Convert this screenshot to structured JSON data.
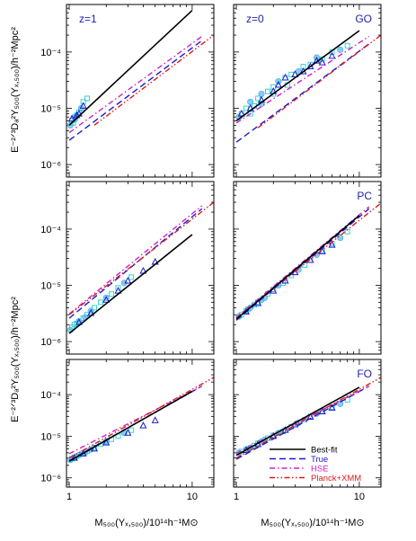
{
  "figure": {
    "ylabel_top": "E⁻²ᐟ³Dₐ²Y₅₀₀(Yₓ,₅₀₀)/h⁻²Mpc²",
    "ylabel_bottom": "E⁻²ᐟ³Dₐ²Y₅₀₀(Yₓ,₅₀₀)/h⁻²Mpc²",
    "xlabel_left": "M₅₀₀(Yₓ,₅₀₀)/10¹⁴h⁻¹M⊙",
    "xlabel_right": "M₅₀₀(Yₓ,₅₀₀)/10¹⁴h⁻¹M⊙"
  },
  "legend": [
    {
      "label": "Best-fit",
      "color": "#000000",
      "dash": "solid"
    },
    {
      "label": "True",
      "color": "#1a1acc",
      "dash": "dash"
    },
    {
      "label": "HSE",
      "color": "#cc22cc",
      "dash": "dashdot"
    },
    {
      "label": "Planck+XMM",
      "color": "#dd1a1a",
      "dash": "dashdotdot"
    }
  ],
  "chart_data": [
    {
      "type": "scatter",
      "panel": "top-left",
      "label": "z=1",
      "label_color": "#2222aa",
      "xscale": "log",
      "yscale": "log",
      "xlim": [
        0.95,
        15
      ],
      "ylim": [
        6e-07,
        0.0007
      ],
      "x_ticks": [
        "1",
        "10"
      ],
      "y_ticks": [
        "10⁻⁶",
        "10⁻⁵",
        "10⁻⁴"
      ],
      "fit": {
        "x": [
          1.0,
          10.0
        ],
        "y": [
          5e-06,
          0.00055
        ]
      },
      "true": {
        "x": [
          1.0,
          12.0
        ],
        "y": [
          2.7e-06,
          0.00016
        ]
      },
      "hse": {
        "x": [
          1.0,
          12.0
        ],
        "y": [
          3.7e-06,
          0.00019
        ]
      },
      "planck": {
        "x": [
          1.6,
          15.0
        ],
        "y": [
          5e-06,
          0.0002
        ]
      },
      "points": [
        [
          1.02,
          5e-06
        ],
        [
          1.05,
          6e-06
        ],
        [
          1.08,
          5.5e-06
        ],
        [
          1.1,
          7e-06
        ],
        [
          1.15,
          7.5e-06
        ],
        [
          1.2,
          8.5e-06
        ],
        [
          1.25,
          1e-05
        ],
        [
          1.3,
          1.3e-05
        ],
        [
          1.4,
          1.5e-05
        ],
        [
          1.12,
          6.5e-06
        ]
      ],
      "triangles": [
        [
          1.05,
          6.5e-06
        ],
        [
          1.15,
          7.5e-06
        ],
        [
          1.2,
          8e-06
        ],
        [
          1.3,
          1.1e-05
        ]
      ]
    },
    {
      "type": "scatter",
      "panel": "top-right",
      "label": "z=0",
      "label2": "GO",
      "label_color": "#2222aa",
      "xscale": "log",
      "yscale": "log",
      "xlim": [
        0.95,
        15
      ],
      "ylim": [
        6e-07,
        0.0007
      ],
      "x_ticks": [
        "1",
        "10"
      ],
      "y_ticks": [
        "10⁻⁶",
        "10⁻⁵",
        "10⁻⁴"
      ],
      "fit": {
        "x": [
          1.0,
          10.0
        ],
        "y": [
          6e-06,
          0.00024
        ]
      },
      "true": {
        "x": [
          1.0,
          12.0
        ],
        "y": [
          2.5e-06,
          0.00014
        ]
      },
      "hse": {
        "x": [
          1.0,
          12.0
        ],
        "y": [
          5.5e-06,
          0.00019
        ]
      },
      "planck": {
        "x": [
          1.5,
          15.0
        ],
        "y": [
          4.5e-06,
          0.0002
        ]
      },
      "points": [
        [
          1.05,
          7e-06
        ],
        [
          1.1,
          8e-06
        ],
        [
          1.2,
          1e-05
        ],
        [
          1.3,
          1.3e-05
        ],
        [
          1.4,
          1.1e-05
        ],
        [
          1.5,
          1.5e-05
        ],
        [
          1.6,
          1.8e-05
        ],
        [
          1.8,
          2e-05
        ],
        [
          2.0,
          2.4e-05
        ],
        [
          2.2,
          3e-05
        ],
        [
          2.5,
          3.5e-05
        ],
        [
          2.8,
          4e-05
        ],
        [
          3.2,
          4.5e-05
        ],
        [
          3.5,
          5.5e-05
        ],
        [
          4.0,
          6e-05
        ],
        [
          4.5,
          8e-05
        ],
        [
          5.0,
          7.5e-05
        ],
        [
          6.0,
          0.0001
        ],
        [
          7.0,
          0.00011
        ],
        [
          8.0,
          0.00013
        ],
        [
          1.3,
          8e-06
        ],
        [
          1.6,
          1.2e-05
        ],
        [
          2.0,
          1.8e-05
        ],
        [
          2.6,
          2.6e-05
        ]
      ],
      "triangles": [
        [
          1.1,
          8e-06
        ],
        [
          1.3,
          1e-05
        ],
        [
          1.6,
          1.4e-05
        ],
        [
          2.0,
          2e-05
        ],
        [
          2.5,
          3.5e-05
        ],
        [
          3.0,
          4e-05
        ],
        [
          3.5,
          4.5e-05
        ],
        [
          4.0,
          5.5e-05
        ],
        [
          4.5,
          7e-05
        ],
        [
          5.0,
          6.5e-05
        ],
        [
          6.0,
          8.5e-05
        ],
        [
          2.2,
          2.6e-05
        ]
      ]
    },
    {
      "type": "scatter",
      "panel": "middle-left",
      "label": "",
      "label_color": "#2222aa",
      "xscale": "log",
      "yscale": "log",
      "xlim": [
        0.95,
        15
      ],
      "ylim": [
        6e-07,
        0.0007
      ],
      "x_ticks": [
        "1",
        "10"
      ],
      "y_ticks": [
        "10⁻⁶",
        "10⁻⁵",
        "10⁻⁴"
      ],
      "fit": {
        "x": [
          1.0,
          10.0
        ],
        "y": [
          1.4e-06,
          8e-05
        ]
      },
      "true": {
        "x": [
          1.0,
          12.0
        ],
        "y": [
          2.6e-06,
          0.00023
        ]
      },
      "hse": {
        "x": [
          1.0,
          12.0
        ],
        "y": [
          3.1e-06,
          0.00026
        ]
      },
      "planck": {
        "x": [
          1.0,
          15.0
        ],
        "y": [
          3e-06,
          0.0003
        ]
      },
      "points": [
        [
          1.02,
          1.6e-06
        ],
        [
          1.05,
          1.8e-06
        ],
        [
          1.1,
          2e-06
        ],
        [
          1.2,
          2.3e-06
        ],
        [
          1.3,
          2.6e-06
        ],
        [
          1.4,
          3e-06
        ],
        [
          1.5,
          3.5e-06
        ],
        [
          1.6,
          4e-06
        ],
        [
          1.8,
          5e-06
        ],
        [
          2.0,
          6e-06
        ],
        [
          2.2,
          7e-06
        ],
        [
          2.5,
          9e-06
        ],
        [
          2.8,
          1.1e-05
        ],
        [
          3.2,
          1.4e-05
        ],
        [
          1.15,
          2.1e-06
        ],
        [
          1.35,
          2.7e-06
        ]
      ],
      "triangles": [
        [
          1.2,
          2.2e-06
        ],
        [
          1.5,
          3.2e-06
        ],
        [
          2.0,
          5.5e-06
        ],
        [
          2.5,
          8e-06
        ],
        [
          3.0,
          1.2e-05
        ],
        [
          4.0,
          1.8e-05
        ],
        [
          5.0,
          2.6e-05
        ]
      ]
    },
    {
      "type": "scatter",
      "panel": "middle-right",
      "label": "",
      "label2": "PC",
      "label_color": "#2222aa",
      "xscale": "log",
      "yscale": "log",
      "xlim": [
        0.95,
        15
      ],
      "ylim": [
        6e-07,
        0.0007
      ],
      "x_ticks": [
        "1",
        "10"
      ],
      "y_ticks": [
        "10⁻⁶",
        "10⁻⁵",
        "10⁻⁴"
      ],
      "fit": {
        "x": [
          1.0,
          10.0
        ],
        "y": [
          2.5e-06,
          0.000175
        ]
      },
      "true": {
        "x": [
          1.0,
          12.0
        ],
        "y": [
          2.4e-06,
          0.00023
        ]
      },
      "hse": {
        "x": [
          1.0,
          12.0
        ],
        "y": [
          2.7e-06,
          0.00025
        ]
      },
      "planck": {
        "x": [
          1.0,
          15.0
        ],
        "y": [
          2.6e-06,
          0.00029
        ]
      },
      "points": [
        [
          1.05,
          2.8e-06
        ],
        [
          1.1,
          3e-06
        ],
        [
          1.2,
          3.5e-06
        ],
        [
          1.3,
          4e-06
        ],
        [
          1.4,
          4.5e-06
        ],
        [
          1.5,
          5e-06
        ],
        [
          1.6,
          5.5e-06
        ],
        [
          1.8,
          7e-06
        ],
        [
          2.0,
          8.5e-06
        ],
        [
          2.2,
          1e-05
        ],
        [
          2.5,
          1.2e-05
        ],
        [
          2.8,
          1.5e-05
        ],
        [
          3.2,
          1.9e-05
        ],
        [
          3.6,
          2.3e-05
        ],
        [
          4.0,
          2.8e-05
        ],
        [
          4.5,
          3.5e-05
        ],
        [
          5.0,
          4.2e-05
        ],
        [
          6.0,
          5.5e-05
        ],
        [
          7.0,
          7e-05
        ],
        [
          8.0,
          9e-05
        ],
        [
          1.25,
          3.8e-06
        ],
        [
          1.7,
          6e-06
        ],
        [
          2.4,
          1.1e-05
        ]
      ],
      "triangles": [
        [
          1.2,
          3.4e-06
        ],
        [
          1.5,
          4.8e-06
        ],
        [
          2.0,
          8e-06
        ],
        [
          2.5,
          1.2e-05
        ],
        [
          3.0,
          1.7e-05
        ],
        [
          4.0,
          2.8e-05
        ],
        [
          5.0,
          4e-05
        ],
        [
          6.0,
          5.2e-05
        ]
      ]
    },
    {
      "type": "scatter",
      "panel": "bottom-left",
      "label": "",
      "label_color": "#2222aa",
      "xscale": "log",
      "yscale": "log",
      "xlim": [
        0.95,
        15
      ],
      "ylim": [
        6e-07,
        0.0007
      ],
      "x_ticks": [
        "1",
        "10"
      ],
      "y_ticks": [
        "10⁻⁶",
        "10⁻⁵",
        "10⁻⁴"
      ],
      "fit": {
        "x": [
          1.0,
          10.0
        ],
        "y": [
          2.5e-06,
          0.00012
        ]
      },
      "true": {
        "x": [
          1.0,
          12.0
        ],
        "y": [
          2.6e-06,
          0.00016
        ]
      },
      "hse": {
        "x": [
          1.0,
          12.0
        ],
        "y": [
          3.8e-06,
          0.00016
        ]
      },
      "planck": {
        "x": [
          1.0,
          15.0
        ],
        "y": [
          3e-06,
          0.00026
        ]
      },
      "points": [
        [
          1.02,
          2.7e-06
        ],
        [
          1.05,
          2.9e-06
        ],
        [
          1.1,
          3.1e-06
        ],
        [
          1.2,
          3.5e-06
        ],
        [
          1.3,
          4e-06
        ],
        [
          1.4,
          4.4e-06
        ],
        [
          1.5,
          4.8e-06
        ],
        [
          1.6,
          5.3e-06
        ],
        [
          1.8,
          6.5e-06
        ],
        [
          2.0,
          7.5e-06
        ],
        [
          2.2,
          8.5e-06
        ],
        [
          2.5,
          1e-05
        ],
        [
          2.8,
          1.2e-05
        ],
        [
          3.2,
          1.4e-05
        ],
        [
          1.15,
          3.3e-06
        ],
        [
          1.35,
          4.1e-06
        ]
      ],
      "triangles": [
        [
          1.1,
          3e-06
        ],
        [
          1.3,
          3.8e-06
        ],
        [
          1.6,
          5e-06
        ],
        [
          2.0,
          7e-06
        ],
        [
          3.0,
          1.2e-05
        ],
        [
          4.0,
          1.8e-05
        ],
        [
          5.0,
          2.4e-05
        ]
      ]
    },
    {
      "type": "scatter",
      "panel": "bottom-right",
      "label": "",
      "label2": "FO",
      "label_color": "#2222aa",
      "xscale": "log",
      "yscale": "log",
      "xlim": [
        0.95,
        15
      ],
      "ylim": [
        6e-07,
        0.0007
      ],
      "x_ticks": [
        "1",
        "10"
      ],
      "y_ticks": [
        "10⁻⁶",
        "10⁻⁵",
        "10⁻⁴"
      ],
      "fit": {
        "x": [
          1.0,
          10.0
        ],
        "y": [
          3.5e-06,
          0.00015
        ]
      },
      "true": {
        "x": [
          1.0,
          12.0
        ],
        "y": [
          2.8e-06,
          0.00016
        ]
      },
      "hse": {
        "x": [
          1.0,
          12.0
        ],
        "y": [
          3.9e-06,
          0.00016
        ]
      },
      "planck": {
        "x": [
          1.0,
          15.0
        ],
        "y": [
          3e-06,
          0.00026
        ]
      },
      "points": [
        [
          1.05,
          4e-06
        ],
        [
          1.1,
          4.3e-06
        ],
        [
          1.2,
          4.8e-06
        ],
        [
          1.3,
          5.3e-06
        ],
        [
          1.4,
          6e-06
        ],
        [
          1.5,
          6.8e-06
        ],
        [
          1.6,
          7.5e-06
        ],
        [
          1.8,
          9e-06
        ],
        [
          2.0,
          1.05e-05
        ],
        [
          2.2,
          1.2e-05
        ],
        [
          2.5,
          1.4e-05
        ],
        [
          2.8,
          1.7e-05
        ],
        [
          3.2,
          2.1e-05
        ],
        [
          3.6,
          2.5e-05
        ],
        [
          4.0,
          3e-05
        ],
        [
          4.5,
          3.5e-05
        ],
        [
          5.0,
          4e-05
        ],
        [
          6.0,
          5e-05
        ],
        [
          7.0,
          6e-05
        ],
        [
          8.0,
          7.5e-05
        ],
        [
          1.25,
          5e-06
        ],
        [
          1.7,
          8.2e-06
        ],
        [
          2.4,
          1.3e-05
        ]
      ],
      "triangles": [
        [
          1.2,
          4.6e-06
        ],
        [
          1.5,
          6.4e-06
        ],
        [
          2.0,
          1e-05
        ],
        [
          2.5,
          1.4e-05
        ],
        [
          3.0,
          1.9e-05
        ],
        [
          4.0,
          2.9e-05
        ],
        [
          5.0,
          3.9e-05
        ],
        [
          6.0,
          4.8e-05
        ]
      ]
    }
  ]
}
